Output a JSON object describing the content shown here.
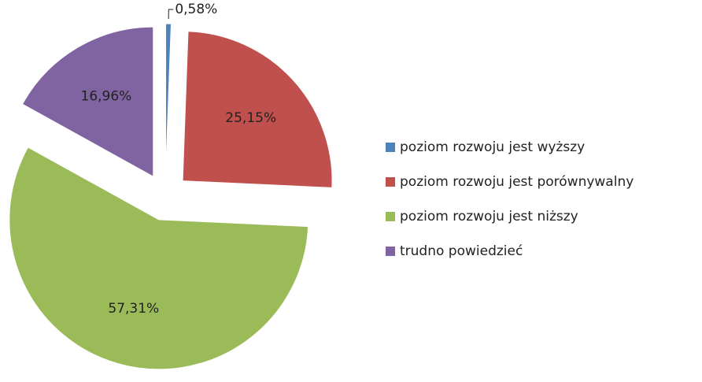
{
  "chart_data": {
    "type": "pie",
    "categories": [
      "poziom rozwoju jest wyższy",
      "poziom rozwoju jest porównywalny",
      "poziom rozwoju jest niższy",
      "trudno powiedzieć"
    ],
    "values": [
      0.58,
      25.15,
      57.31,
      16.96
    ],
    "value_labels": [
      "0,58%",
      "25,15%",
      "57,31%",
      "16,96%"
    ],
    "colors": [
      "#4f81bd",
      "#c0504d",
      "#9bbb59",
      "#8064a2"
    ],
    "legend": "right"
  }
}
